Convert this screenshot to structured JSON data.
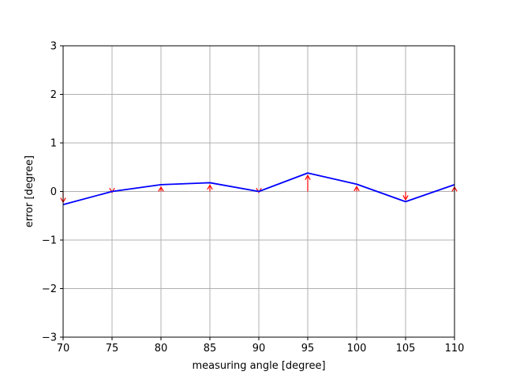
{
  "chart_data": {
    "type": "line",
    "title": "",
    "xlabel": "measuring angle [degree]",
    "ylabel": "error [degree]",
    "xlim": [
      70,
      110
    ],
    "ylim": [
      -3,
      3
    ],
    "xticks": [
      "70",
      "75",
      "80",
      "85",
      "90",
      "95",
      "100",
      "105",
      "110"
    ],
    "yticks": [
      "−3",
      "−2",
      "−1",
      "0",
      "1",
      "2",
      "3"
    ],
    "grid": true,
    "series": [
      {
        "type": "line",
        "color": "#0000ff",
        "x": [
          70,
          75,
          80,
          85,
          90,
          95,
          100,
          105,
          110
        ],
        "y": [
          -0.27,
          0.0,
          0.14,
          0.18,
          0.0,
          0.38,
          0.15,
          -0.21,
          0.14
        ]
      }
    ],
    "arrows": {
      "color": "#ff0000",
      "x": [
        70,
        75,
        80,
        85,
        90,
        95,
        100,
        105,
        110
      ],
      "y_start": [
        0.0,
        0.0,
        0.0,
        0.0,
        0.0,
        0.0,
        0.0,
        0.0,
        0.0
      ],
      "y_end": [
        -0.22,
        -0.02,
        0.09,
        0.13,
        -0.02,
        0.33,
        0.1,
        -0.17,
        0.09
      ]
    }
  }
}
